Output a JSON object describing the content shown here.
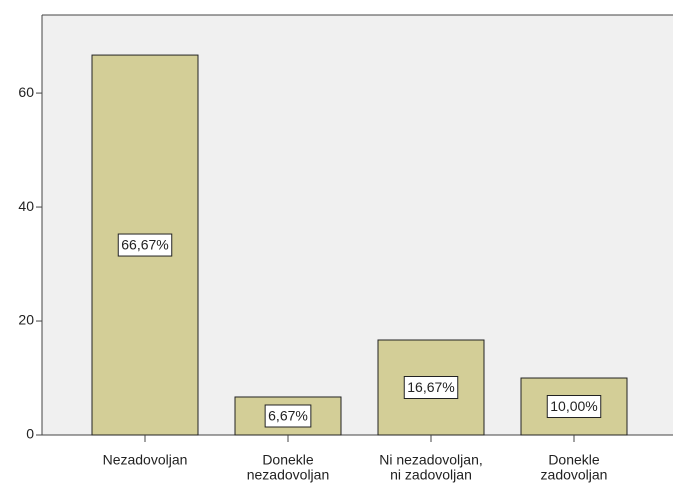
{
  "chart_data": {
    "type": "bar",
    "categories": [
      [
        "Nezadovoljan"
      ],
      [
        "Donekle",
        "nezadovoljan"
      ],
      [
        "Ni nezadovoljan,",
        "ni zadovoljan"
      ],
      [
        "Donekle",
        "zadovoljan"
      ]
    ],
    "values": [
      66.67,
      6.67,
      16.67,
      10.0
    ],
    "value_labels": [
      "66,67%",
      "6,67%",
      "16,67%",
      "10,00%"
    ],
    "color": "#d3ce97",
    "ylim": [
      0,
      73.7
    ],
    "yticks": [
      0,
      20,
      40,
      60
    ],
    "grid": false
  }
}
